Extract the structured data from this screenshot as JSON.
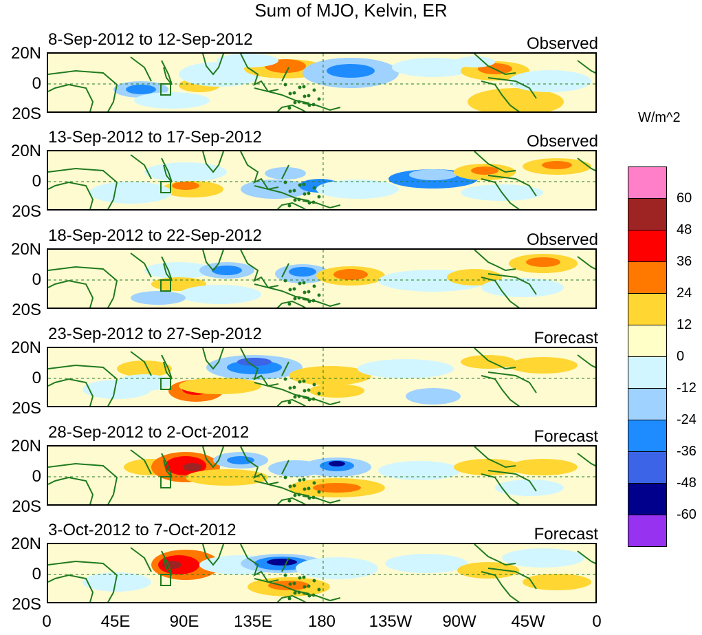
{
  "title": "Sum of MJO, Kelvin, ER",
  "units": "W/m^2",
  "lat_labels": [
    "20N",
    "0",
    "20S"
  ],
  "lon_labels": [
    "0",
    "45E",
    "90E",
    "135E",
    "180",
    "135W",
    "90W",
    "45W",
    "0"
  ],
  "panels": [
    {
      "label": "8-Sep-2012 to 12-Sep-2012",
      "status": "Observed"
    },
    {
      "label": "13-Sep-2012 to 17-Sep-2012",
      "status": "Observed"
    },
    {
      "label": "18-Sep-2012 to 22-Sep-2012",
      "status": "Observed"
    },
    {
      "label": "23-Sep-2012 to 27-Sep-2012",
      "status": "Forecast"
    },
    {
      "label": "28-Sep-2012 to 2-Oct-2012",
      "status": "Forecast"
    },
    {
      "label": "3-Oct-2012 to 7-Oct-2012",
      "status": "Forecast"
    }
  ],
  "colorbar": {
    "colors": [
      "#ff7fc8",
      "#9e2424",
      "#ff0000",
      "#ff7800",
      "#ffd632",
      "#ffffc8",
      "#d2f6ff",
      "#a0d2ff",
      "#1e8cff",
      "#3c64e6",
      "#00008c",
      "#9632f0"
    ],
    "labels": [
      "60",
      "48",
      "36",
      "24",
      "12",
      "0",
      "-12",
      "-24",
      "-36",
      "-48",
      "-60"
    ]
  },
  "map_colors": {
    "coast": "#1f7a1f",
    "dash": "#1f7a1f",
    "bg": "#fffbd0"
  }
}
